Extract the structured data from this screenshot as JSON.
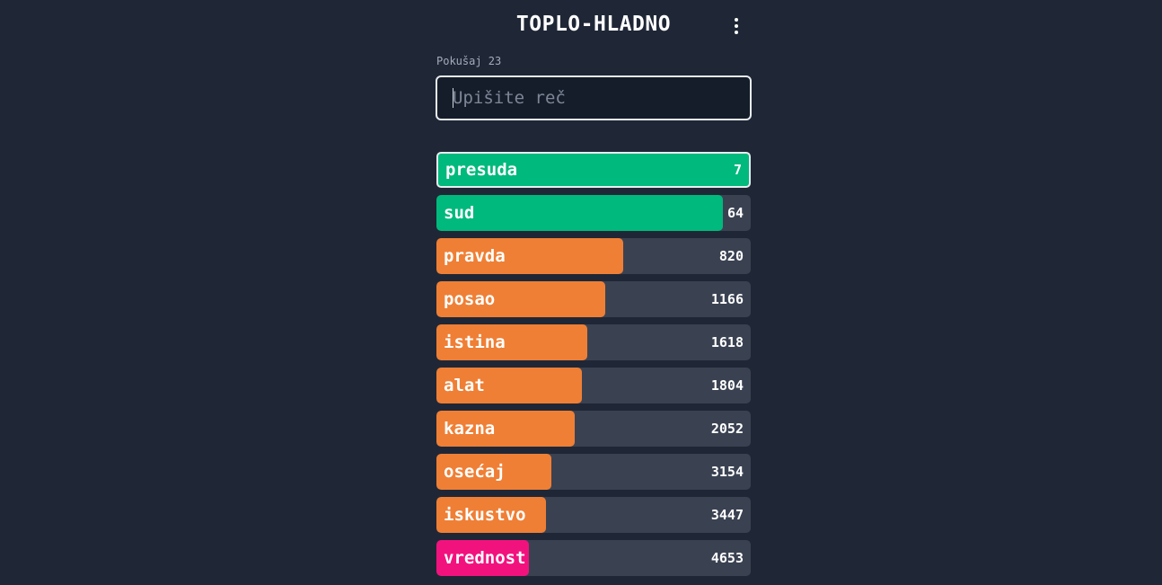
{
  "header": {
    "title": "TOPLO-HLADNO",
    "menu_icon": "more-vertical-icon"
  },
  "attempt_label": "Pokušaj 23",
  "input": {
    "placeholder": "Upišite reč",
    "value": ""
  },
  "colors": {
    "background": "#1f2736",
    "track": "#3a4252",
    "hot": "#00b97c",
    "warm": "#ef7f35",
    "cold": "#f2127e"
  },
  "current_guess": {
    "word": "presuda",
    "rank": "7",
    "level": 1.0,
    "color": "#00b97c"
  },
  "guesses": [
    {
      "word": "sud",
      "rank": "64",
      "level": 0.91,
      "color": "#00b97c"
    },
    {
      "word": "pravda",
      "rank": "820",
      "level": 0.595,
      "color": "#ef7f35"
    },
    {
      "word": "posao",
      "rank": "1166",
      "level": 0.537,
      "color": "#ef7f35"
    },
    {
      "word": "istina",
      "rank": "1618",
      "level": 0.48,
      "color": "#ef7f35"
    },
    {
      "word": "alat",
      "rank": "1804",
      "level": 0.463,
      "color": "#ef7f35"
    },
    {
      "word": "kazna",
      "rank": "2052",
      "level": 0.44,
      "color": "#ef7f35"
    },
    {
      "word": "osećaj",
      "rank": "3154",
      "level": 0.366,
      "color": "#ef7f35"
    },
    {
      "word": "iskustvo",
      "rank": "3447",
      "level": 0.349,
      "color": "#ef7f35"
    },
    {
      "word": "vrednost",
      "rank": "4653",
      "level": 0.294,
      "color": "#f2127e"
    }
  ]
}
